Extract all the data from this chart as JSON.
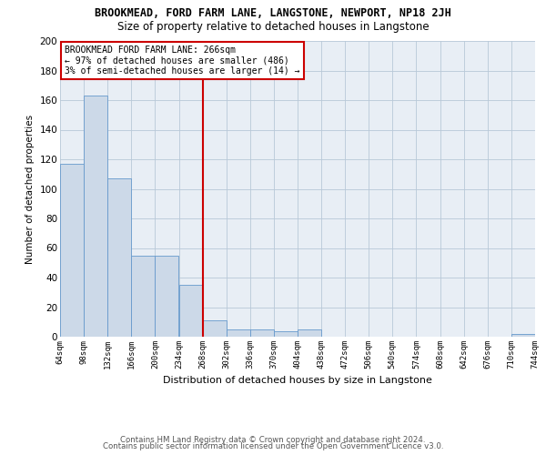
{
  "title": "BROOKMEAD, FORD FARM LANE, LANGSTONE, NEWPORT, NP18 2JH",
  "subtitle": "Size of property relative to detached houses in Langstone",
  "xlabel": "Distribution of detached houses by size in Langstone",
  "ylabel": "Number of detached properties",
  "bar_color": "#ccd9e8",
  "bar_edge_color": "#6699cc",
  "grid_color": "#b8c8d8",
  "vline_x": 268,
  "vline_color": "#cc0000",
  "bin_edges": [
    64,
    98,
    132,
    166,
    200,
    234,
    268,
    302,
    336,
    370,
    404,
    438,
    472,
    506,
    540,
    574,
    608,
    642,
    676,
    710,
    744
  ],
  "bar_heights": [
    117,
    163,
    107,
    55,
    55,
    35,
    11,
    5,
    5,
    4,
    5,
    0,
    0,
    0,
    0,
    0,
    0,
    0,
    0,
    2
  ],
  "xlim": [
    64,
    744
  ],
  "ylim": [
    0,
    200
  ],
  "yticks": [
    0,
    20,
    40,
    60,
    80,
    100,
    120,
    140,
    160,
    180,
    200
  ],
  "xtick_labels": [
    "64sqm",
    "98sqm",
    "132sqm",
    "166sqm",
    "200sqm",
    "234sqm",
    "268sqm",
    "302sqm",
    "336sqm",
    "370sqm",
    "404sqm",
    "438sqm",
    "472sqm",
    "506sqm",
    "540sqm",
    "574sqm",
    "608sqm",
    "642sqm",
    "676sqm",
    "710sqm",
    "744sqm"
  ],
  "annotation_title": "BROOKMEAD FORD FARM LANE: 266sqm",
  "annotation_line1": "← 97% of detached houses are smaller (486)",
  "annotation_line2": "3% of semi-detached houses are larger (14) →",
  "annotation_box_color": "#ffffff",
  "annotation_box_edge": "#cc0000",
  "footer1": "Contains HM Land Registry data © Crown copyright and database right 2024.",
  "footer2": "Contains public sector information licensed under the Open Government Licence v3.0.",
  "bg_color": "#e8eef5",
  "fig_bg": "#ffffff"
}
